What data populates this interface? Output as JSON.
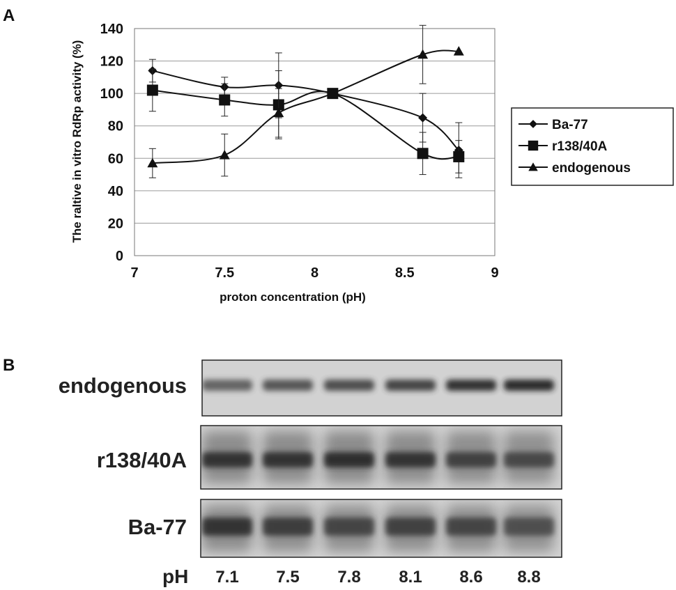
{
  "panel_a_label": "A",
  "panel_b_label": "B",
  "chart_data": {
    "type": "line",
    "title": "",
    "xlabel": "proton concentration (pH)",
    "ylabel": "The raltive in vitro RdRp activity (%)",
    "xlim": [
      7,
      9
    ],
    "ylim": [
      0,
      140
    ],
    "xticks": [
      7,
      7.5,
      8,
      8.5,
      9
    ],
    "xtick_labels": [
      "7",
      "7.5",
      "8",
      "8.5",
      "9"
    ],
    "yticks": [
      0,
      20,
      40,
      60,
      80,
      100,
      120,
      140
    ],
    "ytick_labels": [
      "0",
      "20",
      "40",
      "60",
      "80",
      "100",
      "120",
      "140"
    ],
    "grid": "horizontal",
    "legend_position": "right",
    "series": [
      {
        "name": "Ba-77",
        "marker": "diamond",
        "x": [
          7.1,
          7.5,
          7.8,
          8.1,
          8.6,
          8.8
        ],
        "y": [
          114,
          104,
          105,
          100,
          85,
          65
        ],
        "err": [
          7,
          6,
          20,
          0,
          15,
          17
        ]
      },
      {
        "name": "r138/40A",
        "marker": "square",
        "x": [
          7.1,
          7.5,
          7.8,
          8.1,
          8.6,
          8.8
        ],
        "y": [
          102,
          96,
          93,
          100,
          63,
          61
        ],
        "err": [
          13,
          10,
          21,
          0,
          13,
          10
        ]
      },
      {
        "name": "endogenous",
        "marker": "triangle",
        "x": [
          7.1,
          7.5,
          7.8,
          8.1,
          8.6,
          8.8
        ],
        "y": [
          57,
          62,
          88,
          100,
          124,
          126
        ],
        "err": [
          9,
          13,
          15,
          0,
          18,
          0
        ]
      }
    ]
  },
  "gel": {
    "rows": [
      {
        "label": "endogenous",
        "intensity": [
          0.55,
          0.62,
          0.68,
          0.72,
          0.85,
          0.88
        ]
      },
      {
        "label": "r138/40A",
        "intensity": [
          0.8,
          0.8,
          0.82,
          0.78,
          0.7,
          0.65
        ]
      },
      {
        "label": "Ba-77",
        "intensity": [
          0.78,
          0.72,
          0.68,
          0.7,
          0.68,
          0.6
        ]
      }
    ],
    "ph_label": "pH",
    "lanes": [
      "7.1",
      "7.5",
      "7.8",
      "8.1",
      "8.6",
      "8.8"
    ]
  }
}
